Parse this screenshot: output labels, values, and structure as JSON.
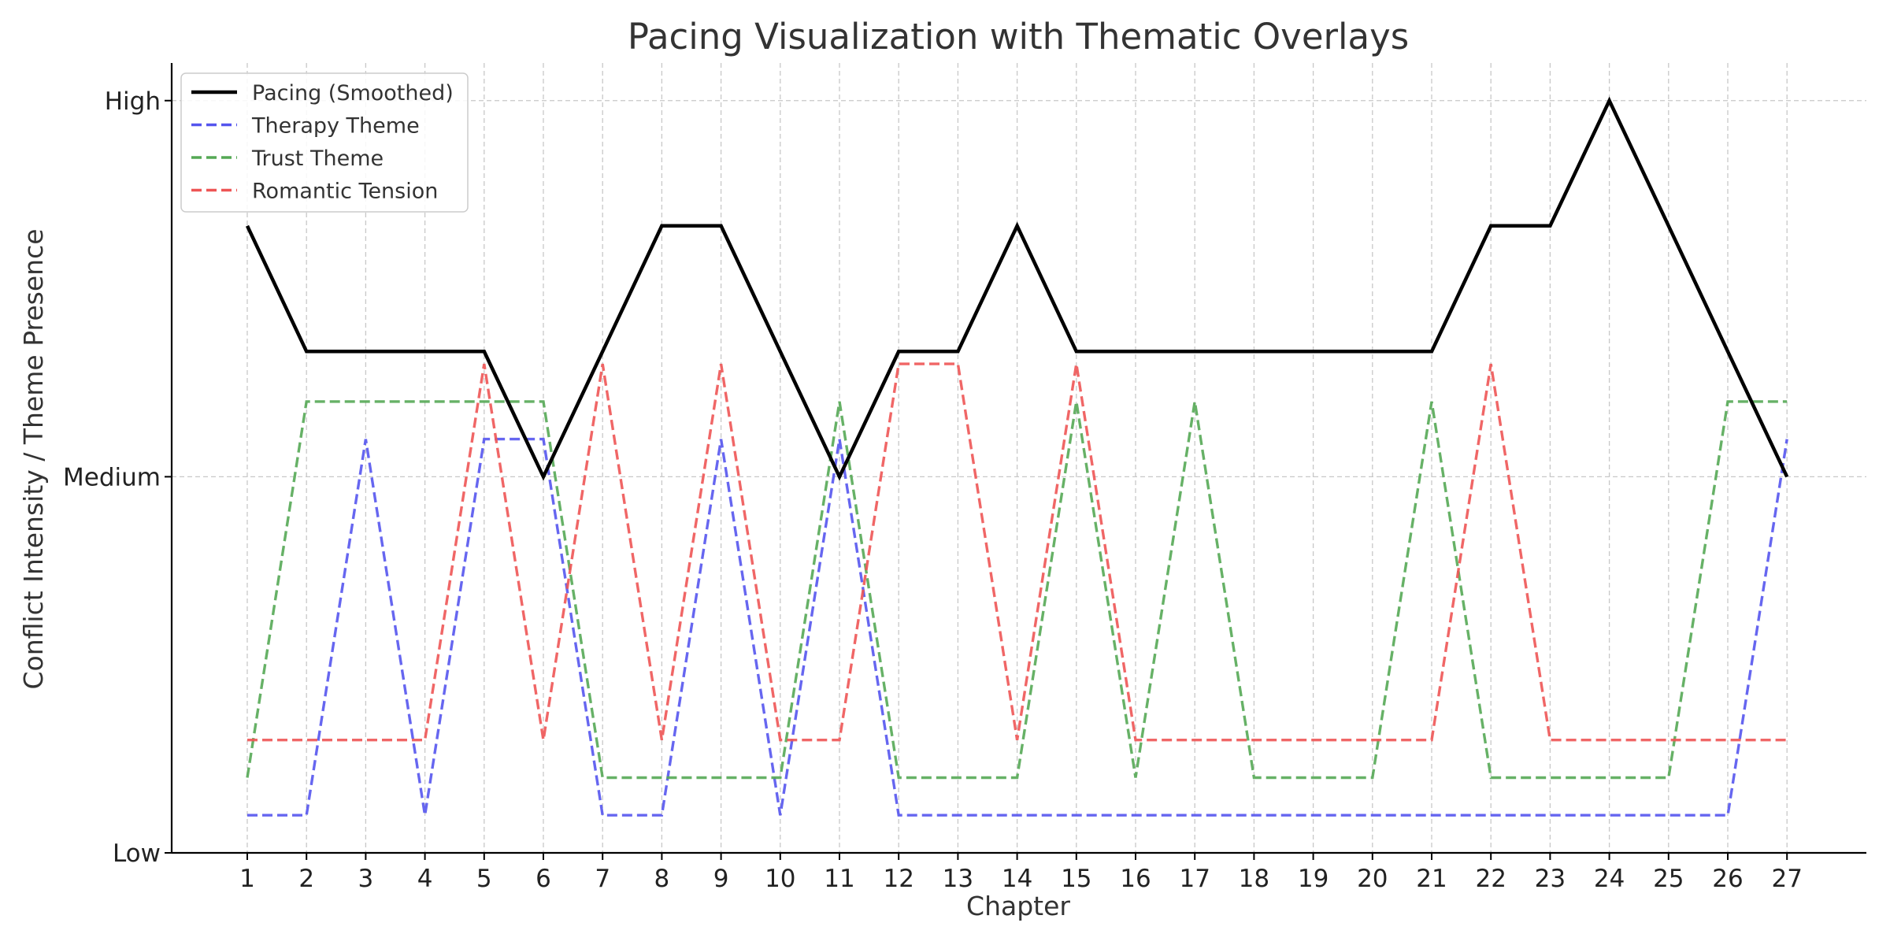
{
  "chart_data": {
    "type": "line",
    "title": "Pacing Visualization with Thematic Overlays",
    "xlabel": "Chapter",
    "ylabel": "Conflict Intensity / Theme Presence",
    "x": [
      1,
      2,
      3,
      4,
      5,
      6,
      7,
      8,
      9,
      10,
      11,
      12,
      13,
      14,
      15,
      16,
      17,
      18,
      19,
      20,
      21,
      22,
      23,
      24,
      25,
      26,
      27
    ],
    "ylim": [
      1,
      3.1
    ],
    "yticks": [
      {
        "value": 1,
        "label": "Low"
      },
      {
        "value": 2,
        "label": "Medium"
      },
      {
        "value": 3,
        "label": "High"
      }
    ],
    "grid": true,
    "legend_position": "top-left",
    "series": [
      {
        "name": "Pacing (Smoothed)",
        "color": "#000000",
        "style": "solid",
        "values": [
          2.667,
          2.333,
          2.333,
          2.333,
          2.333,
          2,
          2.333,
          2.667,
          2.667,
          2.333,
          2,
          2.333,
          2.333,
          2.667,
          2.333,
          2.333,
          2.333,
          2.333,
          2.333,
          2.333,
          2.333,
          2.667,
          2.667,
          3,
          2.667,
          2.333,
          2
        ]
      },
      {
        "name": "Therapy Theme",
        "color": "#5555ee",
        "style": "dashed",
        "values": [
          1.1,
          1.1,
          2.1,
          1.1,
          2.1,
          2.1,
          1.1,
          1.1,
          2.1,
          1.1,
          2.1,
          1.1,
          1.1,
          1.1,
          1.1,
          1.1,
          1.1,
          1.1,
          1.1,
          1.1,
          1.1,
          1.1,
          1.1,
          1.1,
          1.1,
          1.1,
          2.1
        ]
      },
      {
        "name": "Trust Theme",
        "color": "#55a855",
        "style": "dashed",
        "values": [
          1.2,
          2.2,
          2.2,
          2.2,
          2.2,
          2.2,
          1.2,
          1.2,
          1.2,
          1.2,
          2.2,
          1.2,
          1.2,
          1.2,
          2.2,
          1.2,
          2.2,
          1.2,
          1.2,
          1.2,
          2.2,
          1.2,
          1.2,
          1.2,
          1.2,
          2.2,
          2.2
        ]
      },
      {
        "name": "Romantic Tension",
        "color": "#ee5555",
        "style": "dashed",
        "values": [
          1.3,
          1.3,
          1.3,
          1.3,
          2.3,
          1.3,
          2.3,
          1.3,
          2.3,
          1.3,
          1.3,
          2.3,
          2.3,
          1.3,
          2.3,
          1.3,
          1.3,
          1.3,
          1.3,
          1.3,
          1.3,
          2.3,
          1.3,
          1.3,
          1.3,
          1.3,
          1.3
        ]
      }
    ]
  }
}
